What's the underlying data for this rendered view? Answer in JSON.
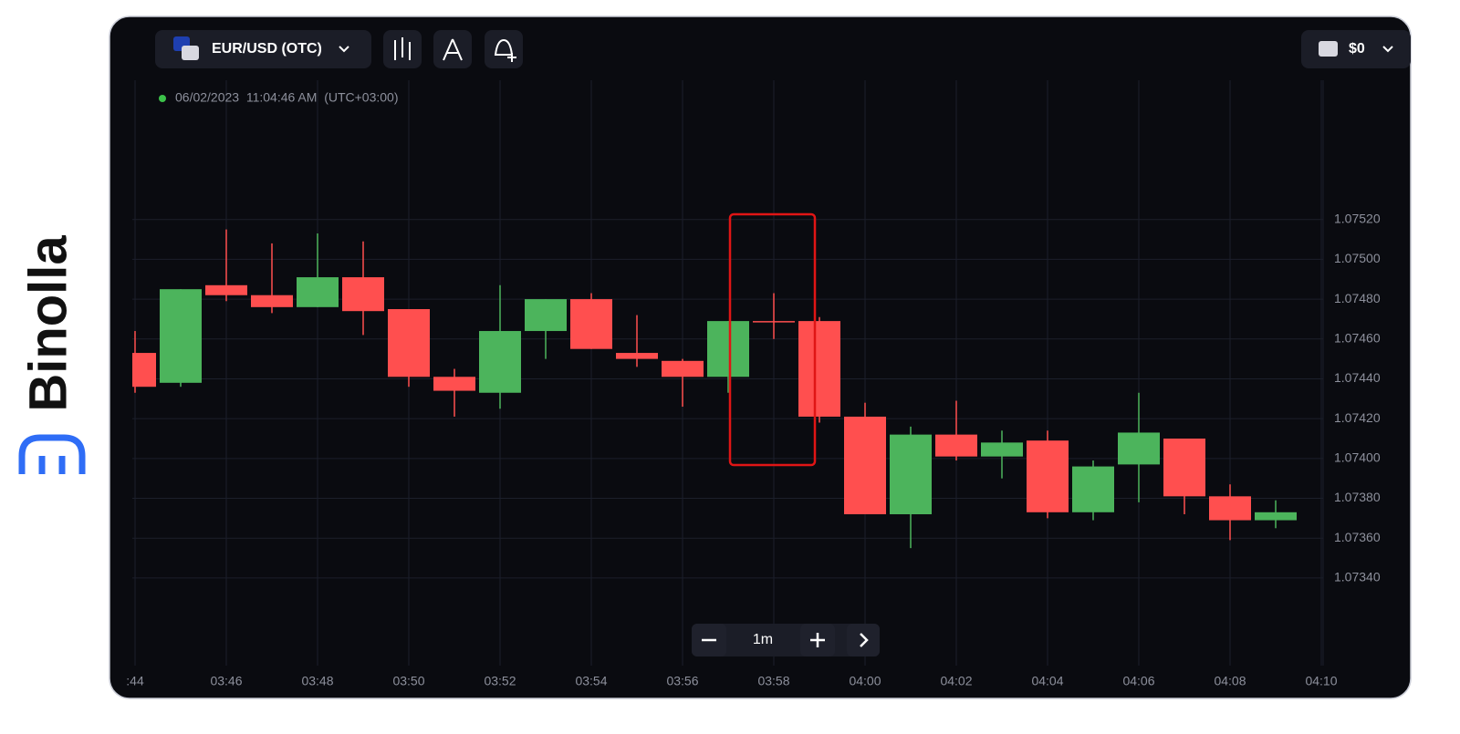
{
  "brand": "Binolla",
  "toolbar": {
    "asset": "EUR/USD (OTC)",
    "balance": "$0"
  },
  "timestamp": "06/02/2023  11:04:46 AM  (UTC+03:00)",
  "timeframe": "1m",
  "chart_data": {
    "type": "candlestick",
    "up_color": "#4cb45c",
    "down_color": "#ff4f4f",
    "categories": [
      ":44",
      null,
      "03:46",
      null,
      "03:48",
      null,
      "03:50",
      null,
      "03:52",
      null,
      "03:54",
      null,
      "03:56",
      null,
      "03:58",
      null,
      "04:00",
      null,
      "04:02",
      null,
      "04:04",
      null,
      "04:06",
      null,
      "04:08",
      null,
      "04:10"
    ],
    "open": [
      1.07453,
      1.07438,
      1.07487,
      1.07482,
      1.07476,
      1.07491,
      1.07475,
      1.07441,
      1.07433,
      1.07464,
      1.0748,
      1.07453,
      1.07449,
      1.07441,
      1.07469,
      1.07469,
      1.07421,
      1.07372,
      1.07412,
      1.07401,
      1.07409,
      1.07373,
      1.07397,
      1.0741,
      1.07381,
      1.07369,
      null
    ],
    "high": [
      1.07464,
      1.07485,
      1.07515,
      1.07508,
      1.07513,
      1.07509,
      1.07475,
      1.07445,
      1.07487,
      1.0748,
      1.07483,
      1.07472,
      1.0745,
      1.07469,
      1.07483,
      1.07471,
      1.07428,
      1.07416,
      1.07429,
      1.07414,
      1.07414,
      1.07399,
      1.07433,
      1.0741,
      1.07387,
      1.07379,
      null
    ],
    "low": [
      1.07433,
      1.07436,
      1.07479,
      1.07473,
      1.07476,
      1.07462,
      1.07436,
      1.07421,
      1.07425,
      1.0745,
      1.07455,
      1.07446,
      1.07426,
      1.07433,
      1.0746,
      1.07418,
      1.07372,
      1.07355,
      1.07399,
      1.0739,
      1.0737,
      1.07369,
      1.07378,
      1.07372,
      1.07359,
      1.07365,
      null
    ],
    "close": [
      1.07436,
      1.07485,
      1.07482,
      1.07476,
      1.07491,
      1.07474,
      1.07441,
      1.07434,
      1.07464,
      1.0748,
      1.07455,
      1.0745,
      1.07441,
      1.07469,
      1.07469,
      1.07421,
      1.07372,
      1.07412,
      1.07401,
      1.07408,
      1.07373,
      1.07396,
      1.07413,
      1.07381,
      1.07369,
      1.07373,
      null
    ],
    "ylim": [
      1.07296,
      1.07589
    ],
    "yticks": [
      {
        "value": 1.0734,
        "label": "1.07340"
      },
      {
        "value": 1.0736,
        "label": "1.07360"
      },
      {
        "value": 1.0738,
        "label": "1.07380"
      },
      {
        "value": 1.074,
        "label": "1.07400"
      },
      {
        "value": 1.0742,
        "label": "1.07420"
      },
      {
        "value": 1.0744,
        "label": "1.07440"
      },
      {
        "value": 1.0746,
        "label": "1.07460"
      },
      {
        "value": 1.0748,
        "label": "1.07480"
      },
      {
        "value": 1.075,
        "label": "1.07500"
      },
      {
        "value": 1.0752,
        "label": "1.07520"
      }
    ],
    "grid": true
  }
}
